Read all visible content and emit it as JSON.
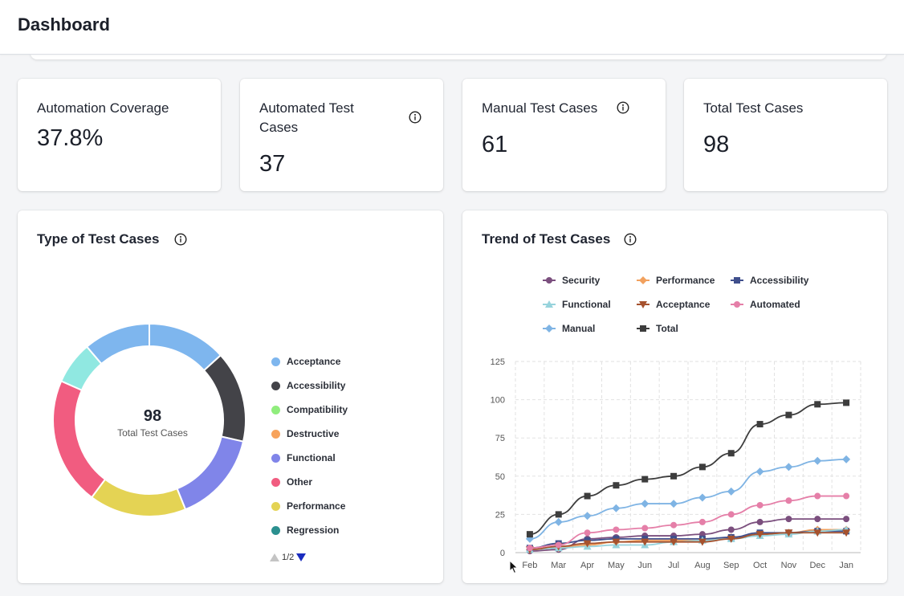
{
  "header": {
    "title": "Dashboard"
  },
  "stats": [
    {
      "title": "Automation Coverage",
      "value": "37.8%"
    },
    {
      "title": "Automated Test Cases",
      "value": "37"
    },
    {
      "title": "Manual Test Cases",
      "value": "61"
    },
    {
      "title": "Total Test Cases",
      "value": "98"
    }
  ],
  "type_panel": {
    "title": "Type of Test Cases",
    "center_value": "98",
    "center_label": "Total Test Cases",
    "pager": "1/2",
    "legend": [
      {
        "name": "Acceptance",
        "color": "#7eb6ee"
      },
      {
        "name": "Accessibility",
        "color": "#434348"
      },
      {
        "name": "Compatibility",
        "color": "#90ed7d"
      },
      {
        "name": "Destructive",
        "color": "#f7a35c"
      },
      {
        "name": "Functional",
        "color": "#8085e9"
      },
      {
        "name": "Other",
        "color": "#f15c80"
      },
      {
        "name": "Performance",
        "color": "#e4d354"
      },
      {
        "name": "Regression",
        "color": "#2b908f"
      }
    ]
  },
  "trend_panel": {
    "title": "Trend of Test Cases",
    "legend": [
      "Security",
      "Performance",
      "Accessibility",
      "Functional",
      "Acceptance",
      "Automated",
      "Manual",
      "Total"
    ]
  },
  "chart_data": [
    {
      "type": "pie",
      "variant": "donut",
      "labels": [
        "Acceptance",
        "Accessibility",
        "Functional",
        "Performance",
        "Other",
        "Regression",
        "Acceptance"
      ],
      "slices": [
        {
          "name": "Acceptance",
          "value": 13,
          "color": "#7eb6ee"
        },
        {
          "name": "Accessibility",
          "value": 15,
          "color": "#434348"
        },
        {
          "name": "Functional",
          "value": 15,
          "color": "#8085e9"
        },
        {
          "name": "Performance",
          "value": 16,
          "color": "#e4d354"
        },
        {
          "name": "Other",
          "value": 21,
          "color": "#f15c80"
        },
        {
          "name": "",
          "value": 7,
          "color": "#90e8e1"
        },
        {
          "name": "",
          "value": 11,
          "color": "#7eb6ee"
        }
      ],
      "total": 98
    },
    {
      "type": "line",
      "categories": [
        "Feb",
        "Mar",
        "Apr",
        "May",
        "Jun",
        "Jul",
        "Aug",
        "Sep",
        "Oct",
        "Nov",
        "Dec",
        "Jan"
      ],
      "ylim": [
        0,
        125
      ],
      "yticks": [
        0,
        25,
        50,
        75,
        100,
        125
      ],
      "grid": true,
      "legend_position": "top",
      "series": [
        {
          "name": "Security",
          "color": "#7b4f7e",
          "marker": "circle",
          "values": [
            1,
            2,
            9,
            10,
            11,
            11,
            12,
            15,
            20,
            22,
            22,
            22
          ]
        },
        {
          "name": "Performance",
          "color": "#f2a15e",
          "marker": "diamond",
          "values": [
            2,
            3,
            5,
            7,
            8,
            8,
            8,
            10,
            12,
            13,
            15,
            15
          ]
        },
        {
          "name": "Accessibility",
          "color": "#3f4f8c",
          "marker": "square",
          "values": [
            3,
            6,
            8,
            9,
            9,
            9,
            9,
            10,
            13,
            13,
            14,
            14
          ]
        },
        {
          "name": "Functional",
          "color": "#97d3dc",
          "marker": "triangle",
          "values": [
            2,
            3,
            4,
            5,
            5,
            7,
            8,
            9,
            11,
            12,
            14,
            15
          ]
        },
        {
          "name": "Acceptance",
          "color": "#a6522e",
          "marker": "triangle-down",
          "values": [
            2,
            4,
            6,
            7,
            7,
            7,
            7,
            9,
            12,
            13,
            13,
            13
          ]
        },
        {
          "name": "Automated",
          "color": "#e57fa8",
          "marker": "circle",
          "values": [
            3,
            5,
            13,
            15,
            16,
            18,
            20,
            25,
            31,
            34,
            37,
            37
          ]
        },
        {
          "name": "Manual",
          "color": "#7fb4e4",
          "marker": "diamond",
          "values": [
            9,
            20,
            24,
            29,
            32,
            32,
            36,
            40,
            53,
            56,
            60,
            61
          ]
        },
        {
          "name": "Total",
          "color": "#3d3d3d",
          "marker": "square",
          "values": [
            12,
            25,
            37,
            44,
            48,
            50,
            56,
            65,
            84,
            90,
            97,
            98
          ]
        }
      ]
    }
  ]
}
